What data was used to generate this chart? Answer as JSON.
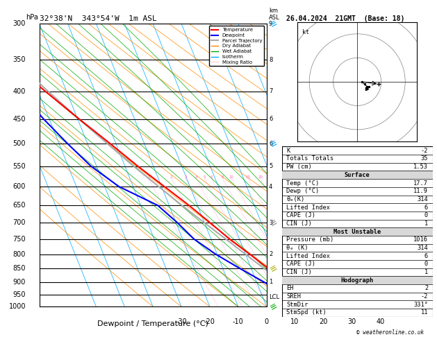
{
  "title_left": "32°38'N  343°54'W  1m ASL",
  "title_right": "26.04.2024  21GMT  (Base: 18)",
  "xlabel": "Dewpoint / Temperature (°C)",
  "pressure_ticks": [
    300,
    350,
    400,
    450,
    500,
    550,
    600,
    650,
    700,
    750,
    800,
    850,
    900,
    950,
    1000
  ],
  "temp_xlim": [
    -40,
    40
  ],
  "temp_xticks": [
    -30,
    -20,
    -10,
    0,
    10,
    20,
    30,
    40
  ],
  "mixing_ratio_lines": [
    1,
    2,
    3,
    4,
    5,
    6,
    8,
    10,
    15,
    20,
    25
  ],
  "temp_profile": {
    "pressure": [
      1000,
      950,
      900,
      850,
      800,
      750,
      700,
      650,
      600,
      550,
      500,
      450,
      400,
      350,
      300
    ],
    "temperature": [
      17.7,
      14.5,
      10.2,
      6.0,
      1.5,
      -3.5,
      -8.0,
      -13.0,
      -19.0,
      -25.5,
      -32.0,
      -39.5,
      -47.5,
      -56.0,
      -59.0
    ]
  },
  "dewpoint_profile": {
    "pressure": [
      1000,
      950,
      900,
      850,
      800,
      750,
      700,
      650,
      600,
      550,
      500,
      450,
      400,
      350,
      300
    ],
    "temperature": [
      11.9,
      8.0,
      2.5,
      -4.0,
      -10.5,
      -16.0,
      -19.5,
      -24.0,
      -35.0,
      -42.0,
      -47.0,
      -52.0,
      -56.5,
      -62.0,
      -66.0
    ]
  },
  "parcel_profile": {
    "pressure": [
      1000,
      950,
      900,
      850,
      800,
      750,
      700,
      650,
      600,
      550,
      500,
      450,
      400,
      350,
      300
    ],
    "temperature": [
      17.7,
      13.5,
      9.0,
      4.5,
      0.0,
      -4.8,
      -10.0,
      -15.5,
      -21.0,
      -27.0,
      -33.0,
      -39.5,
      -46.5,
      -54.0,
      -60.5
    ]
  },
  "lcl_pressure": 960,
  "p_min": 300,
  "p_max": 1000,
  "skew_amount": 40,
  "colors": {
    "temperature": "#ff0000",
    "dewpoint": "#0000ff",
    "parcel": "#aaaaaa",
    "dry_adiabat": "#ff8c00",
    "wet_adiabat": "#00aa00",
    "isotherm": "#00aaff",
    "mixing_ratio": "#ff69b4",
    "background": "#ffffff",
    "grid": "#000000"
  },
  "table_data": {
    "K": "-2",
    "Totals Totals": "35",
    "PW (cm)": "1.53",
    "Surface_Temp": "17.7",
    "Surface_Dewp": "11.9",
    "Surface_theta_e": "314",
    "Surface_Lifted_Index": "6",
    "Surface_CAPE": "0",
    "Surface_CIN": "1",
    "MU_Pressure": "1016",
    "MU_theta_e": "314",
    "MU_Lifted_Index": "6",
    "MU_CAPE": "0",
    "MU_CIN": "1",
    "EH": "2",
    "SREH": "-2",
    "StmDir": "331°",
    "StmSpd": "11"
  },
  "hodo_u": [
    2,
    3,
    4,
    5,
    4
  ],
  "hodo_v": [
    0,
    -1,
    -2,
    -2,
    -3
  ],
  "km_labels": [
    [
      300,
      "9"
    ],
    [
      350,
      "8"
    ],
    [
      400,
      "7"
    ],
    [
      450,
      "6"
    ],
    [
      500,
      "6"
    ],
    [
      550,
      "5"
    ],
    [
      600,
      "4"
    ],
    [
      700,
      "3"
    ],
    [
      800,
      "2"
    ],
    [
      900,
      "1"
    ]
  ],
  "wind_barb_data": [
    {
      "pressure": 300,
      "color": "#00aaff",
      "flag_type": "cyan"
    },
    {
      "pressure": 500,
      "color": "#00aaff",
      "flag_type": "cyan"
    },
    {
      "pressure": 700,
      "color": "#888888",
      "flag_type": "gray"
    },
    {
      "pressure": 850,
      "color": "#aaaa00",
      "flag_type": "yellow"
    },
    {
      "pressure": 1000,
      "color": "#00aa00",
      "flag_type": "green"
    }
  ]
}
